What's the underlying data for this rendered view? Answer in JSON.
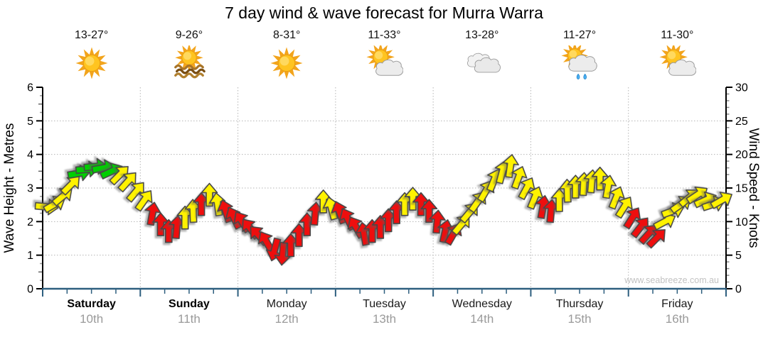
{
  "title": "7 day wind & wave forecast for Murra Warra",
  "watermark": "www.seabreeze.com.au",
  "days": [
    {
      "name": "Saturday",
      "date": "10th",
      "temp": "13-27°",
      "icon": "sunny"
    },
    {
      "name": "Sunday",
      "date": "11th",
      "temp": "9-26°",
      "icon": "sunny-waves"
    },
    {
      "name": "Monday",
      "date": "12th",
      "temp": "8-31°",
      "icon": "sunny"
    },
    {
      "name": "Tuesday",
      "date": "13th",
      "temp": "11-33°",
      "icon": "partly-cloudy"
    },
    {
      "name": "Wednesday",
      "date": "14th",
      "temp": "13-28°",
      "icon": "cloudy"
    },
    {
      "name": "Thursday",
      "date": "15th",
      "temp": "11-27°",
      "icon": "showers"
    },
    {
      "name": "Friday",
      "date": "16th",
      "temp": "11-30°",
      "icon": "partly-cloudy"
    }
  ],
  "chart_data": {
    "type": "wind-arrows",
    "title": "7 day wind & wave forecast for Murra Warra",
    "sample_interval_hours": 2,
    "x_axis": {
      "categories": [
        "Saturday",
        "Sunday",
        "Monday",
        "Tuesday",
        "Wednesday",
        "Thursday",
        "Friday"
      ],
      "dates": [
        "10th",
        "11th",
        "12th",
        "13th",
        "14th",
        "15th",
        "16th"
      ],
      "minor_tick_hours": 6,
      "day_boundary_gridlines": true
    },
    "y_left": {
      "label": "Wave Height - Metres",
      "min": 0,
      "max": 6,
      "tick_step": 1,
      "tick_labels": [
        "0",
        "1",
        "2",
        "3",
        "4",
        "5",
        "6"
      ]
    },
    "y_right": {
      "label": "Wind Speed - Knots",
      "min": 0,
      "max": 30,
      "tick_step": 5,
      "tick_labels": [
        "0",
        "5",
        "10",
        "15",
        "20",
        "25",
        "30"
      ]
    },
    "grid": {
      "horizontal_dotted_at_metres": [
        1,
        2,
        3,
        4,
        5
      ],
      "color": "#b5b5b5"
    },
    "arrow_colors": {
      "g": "#00cf00",
      "y": "#fff200",
      "r": "#ee0e0e"
    },
    "axis_colors": {
      "left_right": "#000000",
      "bottom": "#2e5f7f"
    },
    "series": [
      {
        "day": "Saturday",
        "points": [
          [
            12.2,
            95,
            "y"
          ],
          [
            12.6,
            60,
            "y"
          ],
          [
            13.8,
            50,
            "y"
          ],
          [
            15.5,
            45,
            "y"
          ],
          [
            17.2,
            80,
            "g"
          ],
          [
            17.8,
            85,
            "g"
          ],
          [
            18.2,
            85,
            "g"
          ],
          [
            18.0,
            80,
            "g"
          ],
          [
            17.5,
            65,
            "g"
          ],
          [
            17.0,
            45,
            "y"
          ],
          [
            16.0,
            42,
            "y"
          ],
          [
            14.5,
            40,
            "y"
          ]
        ]
      },
      {
        "day": "Sunday",
        "points": [
          [
            13.2,
            35,
            "y"
          ],
          [
            11.2,
            10,
            "r"
          ],
          [
            9.6,
            0,
            "r"
          ],
          [
            8.6,
            0,
            "r"
          ],
          [
            9.2,
            5,
            "r"
          ],
          [
            10.6,
            0,
            "y"
          ],
          [
            11.6,
            358,
            "y"
          ],
          [
            12.6,
            0,
            "r"
          ],
          [
            14.0,
            0,
            "y"
          ],
          [
            12.6,
            352,
            "y"
          ],
          [
            11.6,
            342,
            "r"
          ],
          [
            10.6,
            334,
            "r"
          ]
        ]
      },
      {
        "day": "Monday",
        "points": [
          [
            10.0,
            328,
            "r"
          ],
          [
            9.0,
            322,
            "r"
          ],
          [
            8.0,
            318,
            "r"
          ],
          [
            7.0,
            330,
            "r"
          ],
          [
            5.8,
            195,
            "r"
          ],
          [
            5.2,
            185,
            "r"
          ],
          [
            6.5,
            0,
            "r"
          ],
          [
            8.0,
            0,
            "r"
          ],
          [
            9.6,
            0,
            "r"
          ],
          [
            11.2,
            5,
            "r"
          ],
          [
            13.0,
            0,
            "y"
          ],
          [
            12.0,
            345,
            "y"
          ]
        ]
      },
      {
        "day": "Tuesday",
        "points": [
          [
            11.4,
            340,
            "r"
          ],
          [
            10.4,
            334,
            "r"
          ],
          [
            9.2,
            330,
            "r"
          ],
          [
            8.2,
            350,
            "r"
          ],
          [
            8.6,
            0,
            "r"
          ],
          [
            9.2,
            0,
            "r"
          ],
          [
            10.2,
            0,
            "r"
          ],
          [
            11.4,
            0,
            "r"
          ],
          [
            12.6,
            0,
            "y"
          ],
          [
            13.4,
            0,
            "y"
          ],
          [
            12.6,
            0,
            "r"
          ],
          [
            11.6,
            0,
            "r"
          ]
        ]
      },
      {
        "day": "Wednesday",
        "points": [
          [
            10.0,
            5,
            "r"
          ],
          [
            8.6,
            12,
            "r"
          ],
          [
            8.2,
            30,
            "r"
          ],
          [
            9.6,
            40,
            "y"
          ],
          [
            11.4,
            40,
            "y"
          ],
          [
            13.0,
            35,
            "y"
          ],
          [
            14.6,
            30,
            "y"
          ],
          [
            16.2,
            22,
            "y"
          ],
          [
            17.4,
            15,
            "y"
          ],
          [
            18.3,
            8,
            "y"
          ],
          [
            16.6,
            20,
            "y"
          ],
          [
            15.0,
            28,
            "y"
          ]
        ]
      },
      {
        "day": "Thursday",
        "points": [
          [
            13.6,
            22,
            "y"
          ],
          [
            12.2,
            10,
            "r"
          ],
          [
            11.6,
            5,
            "r"
          ],
          [
            13.2,
            0,
            "y"
          ],
          [
            14.6,
            358,
            "y"
          ],
          [
            15.2,
            0,
            "y"
          ],
          [
            15.6,
            3,
            "y"
          ],
          [
            16.0,
            5,
            "y"
          ],
          [
            16.4,
            0,
            "y"
          ],
          [
            15.2,
            10,
            "y"
          ],
          [
            13.6,
            22,
            "y"
          ],
          [
            12.2,
            32,
            "y"
          ]
        ]
      },
      {
        "day": "Friday",
        "points": [
          [
            10.6,
            32,
            "r"
          ],
          [
            9.2,
            38,
            "r"
          ],
          [
            8.2,
            42,
            "r"
          ],
          [
            7.6,
            45,
            "r"
          ],
          [
            10.0,
            62,
            "y"
          ],
          [
            11.6,
            70,
            "y"
          ],
          [
            12.6,
            55,
            "y"
          ],
          [
            13.6,
            50,
            "y"
          ],
          [
            14.0,
            56,
            "y"
          ],
          [
            13.2,
            66,
            "y"
          ],
          [
            12.6,
            72,
            "y"
          ],
          [
            13.2,
            60,
            "y"
          ]
        ]
      }
    ]
  }
}
